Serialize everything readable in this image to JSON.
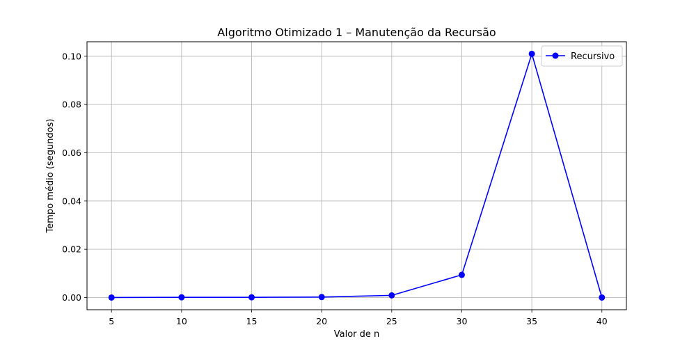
{
  "chart_data": {
    "type": "line",
    "title": "Algoritmo Otimizado 1 – Manutenção da Recursão",
    "xlabel": "Valor de n",
    "ylabel": "Tempo médio (segundos)",
    "x": [
      5,
      10,
      15,
      20,
      25,
      30,
      35,
      40
    ],
    "x_ticks": [
      5,
      10,
      15,
      20,
      25,
      30,
      35,
      40
    ],
    "x_tick_labels": [
      "5",
      "10",
      "15",
      "20",
      "25",
      "30",
      "35",
      "40"
    ],
    "y_ticks": [
      0.0,
      0.02,
      0.04,
      0.06,
      0.08,
      0.1
    ],
    "y_tick_labels": [
      "0.00",
      "0.02",
      "0.04",
      "0.06",
      "0.08",
      "0.10"
    ],
    "xlim": [
      3.25,
      41.75
    ],
    "ylim": [
      -0.00505,
      0.106
    ],
    "grid": true,
    "legend_position": "top-right",
    "series": [
      {
        "name": "Recursivo",
        "color": "#0000ff",
        "marker": "circle",
        "values": [
          1e-05,
          0.0001,
          0.0001,
          0.0002,
          0.0009,
          0.0094,
          0.101,
          0.0
        ]
      }
    ]
  }
}
